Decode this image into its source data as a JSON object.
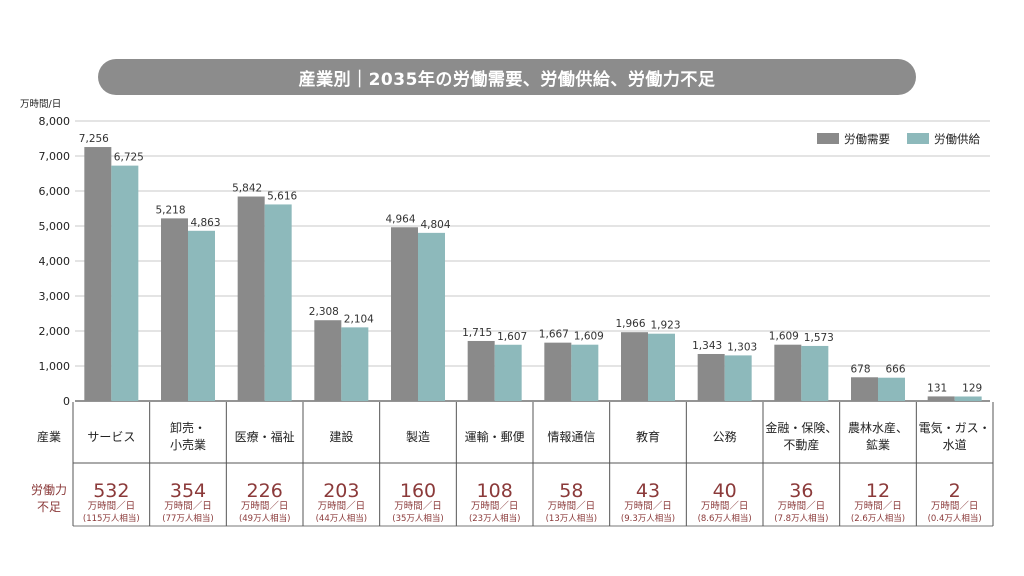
{
  "title": "産業別｜2035年の労働需要、労働供給、労働力不足",
  "colors": {
    "demand": "#8a8a8a",
    "supply": "#8db9bb",
    "shortage": "#8b3a3a",
    "grid": "#c8c8c8"
  },
  "chart_data": {
    "type": "bar",
    "ylabel": "万時間/日",
    "ylim": [
      0,
      8000
    ],
    "yticks": [
      "0",
      "1,000",
      "2,000",
      "3,000",
      "4,000",
      "5,000",
      "6,000",
      "7,000",
      "8,000"
    ],
    "grid": true,
    "legend": "top-right",
    "categories": [
      [
        "サービス"
      ],
      [
        "卸売・",
        "小売業"
      ],
      [
        "医療・福祉"
      ],
      [
        "建設"
      ],
      [
        "製造"
      ],
      [
        "運輸・郵便"
      ],
      [
        "情報通信"
      ],
      [
        "教育"
      ],
      [
        "公務"
      ],
      [
        "金融・保険、",
        "不動産"
      ],
      [
        "農林水産、",
        "鉱業"
      ],
      [
        "電気・ガス・",
        "水道"
      ]
    ],
    "series": [
      {
        "name": "労働需要",
        "values": [
          7256,
          5218,
          5842,
          2308,
          4964,
          1715,
          1667,
          1966,
          1343,
          1609,
          678,
          131
        ],
        "labels": [
          "7,256",
          "5,218",
          "5,842",
          "2,308",
          "4,964",
          "1,715",
          "1,667",
          "1,966",
          "1,343",
          "1,609",
          "678",
          "131"
        ]
      },
      {
        "name": "労働供給",
        "values": [
          6725,
          4863,
          5616,
          2104,
          4804,
          1607,
          1609,
          1923,
          1303,
          1573,
          666,
          129
        ],
        "labels": [
          "6,725",
          "4,863",
          "5,616",
          "2,104",
          "4,804",
          "1,607",
          "1,609",
          "1,923",
          "1,303",
          "1,573",
          "666",
          "129"
        ]
      }
    ],
    "table": {
      "row_label_industry": "産業",
      "row_label_shortage": [
        "労働力",
        "不足"
      ],
      "shortage_values": [
        "532",
        "354",
        "226",
        "203",
        "160",
        "108",
        "58",
        "43",
        "40",
        "36",
        "12",
        "2"
      ],
      "shortage_unit": "万時間／日",
      "shortage_equiv": [
        "(115万人相当)",
        "(77万人相当)",
        "(49万人相当)",
        "(44万人相当)",
        "(35万人相当)",
        "(23万人相当)",
        "(13万人相当)",
        "(9.3万人相当)",
        "(8.6万人相当)",
        "(7.8万人相当)",
        "(2.6万人相当)",
        "(0.4万人相当)"
      ]
    }
  }
}
